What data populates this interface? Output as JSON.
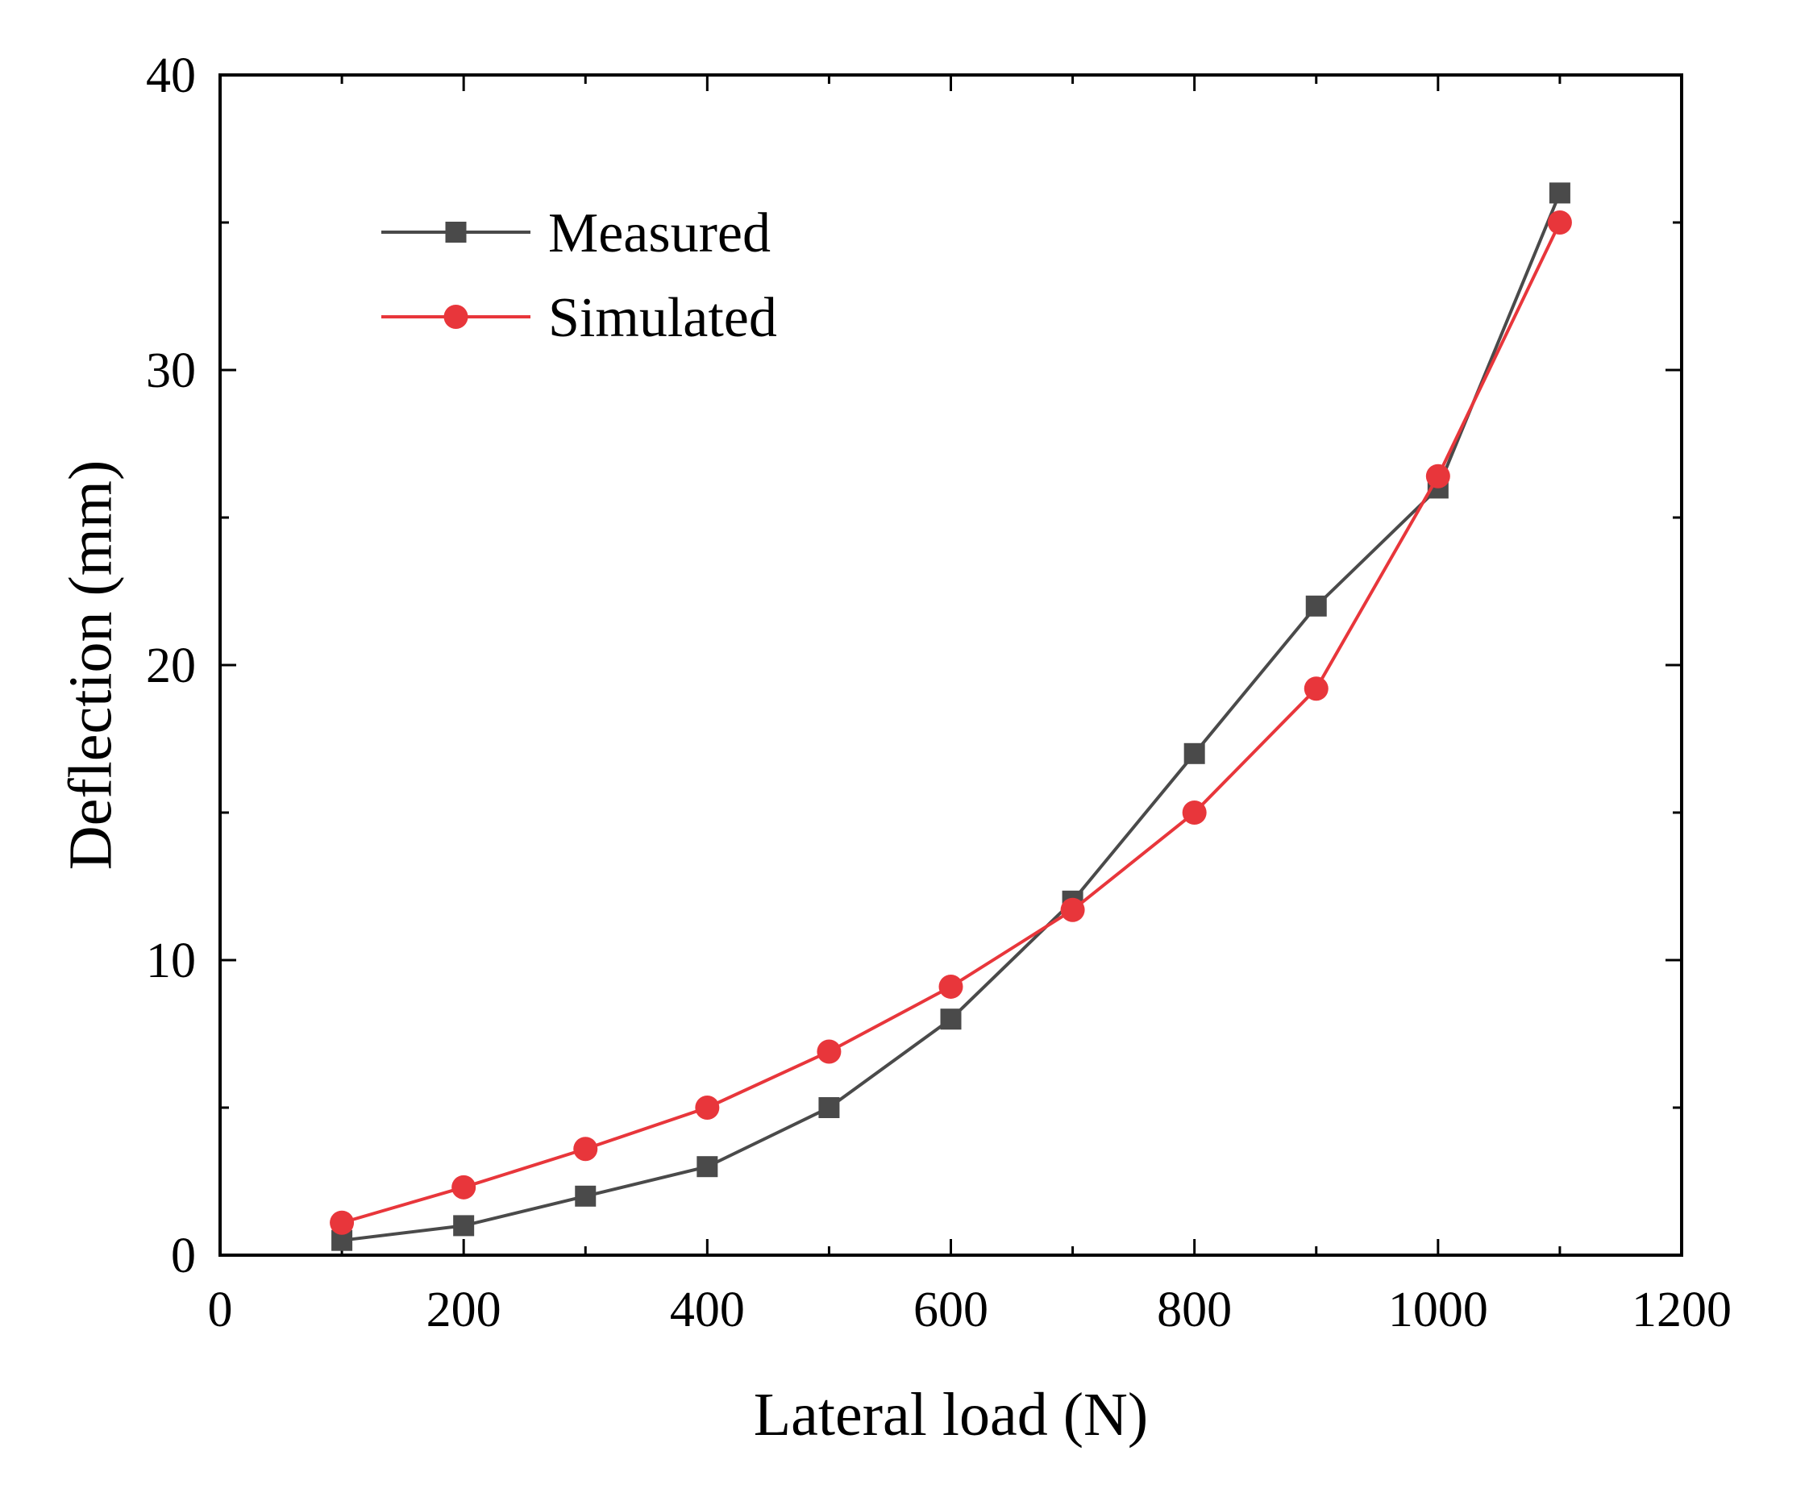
{
  "chart_data": {
    "type": "line",
    "title": "",
    "xlabel": "Lateral load (N)",
    "ylabel": "Deflection (mm)",
    "xlim": [
      0,
      1200
    ],
    "ylim": [
      0,
      40
    ],
    "xticks": [
      0,
      200,
      400,
      600,
      800,
      1000,
      1200
    ],
    "yticks": [
      0,
      10,
      20,
      30,
      40
    ],
    "grid": false,
    "legend_position": "top-left",
    "x": [
      100,
      200,
      300,
      400,
      500,
      600,
      700,
      800,
      900,
      1000,
      1100
    ],
    "series": [
      {
        "name": "Measured",
        "marker": "square",
        "color": "#4a4a4a",
        "values": [
          0.5,
          1.0,
          2.0,
          3.0,
          5.0,
          8.0,
          12.0,
          17.0,
          22.0,
          26.0,
          36.0
        ]
      },
      {
        "name": "Simulated",
        "marker": "circle",
        "color": "#e8363b",
        "values": [
          1.1,
          2.3,
          3.6,
          5.0,
          6.9,
          9.1,
          11.7,
          15.0,
          19.2,
          26.4,
          35.0
        ]
      }
    ]
  }
}
